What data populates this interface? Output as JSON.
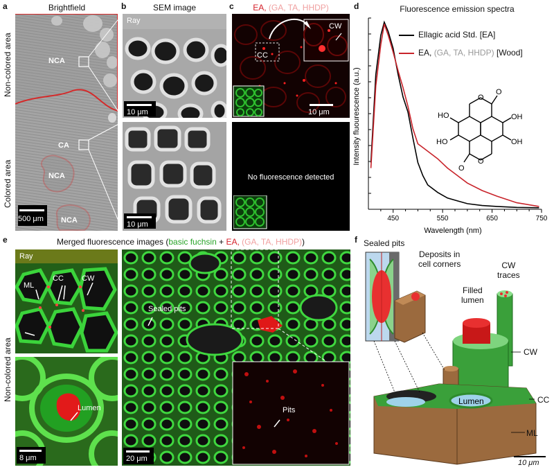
{
  "panel_a": {
    "letter": "a",
    "title": "Brightfield",
    "side_top": "Non-colored area",
    "side_bottom": "Colored area",
    "labels": [
      "NCA",
      "CA",
      "NCA",
      "NCA"
    ],
    "scale": "500 μm"
  },
  "panel_b": {
    "letter": "b",
    "title": "SEM image",
    "ray": "Ray",
    "scale_top": "10 μm",
    "scale_bottom": "10 μm"
  },
  "panel_c": {
    "letter": "c",
    "title_main": "EA,",
    "title_sub": "(GA, TA, HHDP)",
    "cc": "CC",
    "cw": "CW",
    "scale": "10 μm",
    "no_fluor": "No fluorescence detected"
  },
  "panel_d": {
    "letter": "d",
    "title": "Fluorescence emission spectra",
    "legend_black": "Ellagic acid Std. [EA]",
    "legend_red_a": "EA,",
    "legend_red_b": "(GA, TA, HHDP)",
    "legend_red_c": "[Wood]",
    "xlabel": "Wavelength (nm)",
    "ylabel": "Intensity fluourescence (a.u.)",
    "molecule_labels": [
      "O",
      "HO",
      "O",
      "HO",
      "OH",
      "O",
      "OH",
      "O"
    ]
  },
  "panel_e": {
    "letter": "e",
    "title_a": "Merged fluorescence images (",
    "title_b": "basic fuchsin",
    "title_c": " + ",
    "title_d": "EA,",
    "title_e": "(GA, TA, HHDP)",
    "title_f": ")",
    "side": "Non-colored area",
    "ray": "Ray",
    "ml": "ML",
    "cc": "CC",
    "cw": "CW",
    "lumen": "Lumen",
    "sealed_pits": "Sealed pits",
    "pits": "Pits",
    "scale_small": "8 μm",
    "scale_big": "20 μm"
  },
  "panel_f": {
    "letter": "f",
    "sealed_pits": "Sealed pits",
    "deposits_1": "Deposits in",
    "deposits_2": "cell corners",
    "cw_traces_1": "CW",
    "cw_traces_2": "traces",
    "filled_1": "Filled",
    "filled_2": "lumen",
    "cw": "CW",
    "cc": "CC",
    "lumen": "Lumen",
    "ml": "ML",
    "scale": "10 μm"
  },
  "chart_data": {
    "type": "line",
    "title": "Fluorescence emission spectra",
    "xlabel": "Wavelength (nm)",
    "ylabel": "Intensity fluourescence (a.u.)",
    "xlim": [
      400,
      750
    ],
    "xticks": [
      450,
      550,
      650,
      750
    ],
    "series": [
      {
        "name": "Ellagic acid Std. [EA]",
        "color": "#000000",
        "x": [
          405,
          415,
          425,
          432,
          440,
          450,
          460,
          470,
          480,
          490,
          500,
          510,
          520,
          540,
          560,
          580,
          600,
          630,
          660,
          700,
          745
        ],
        "y": [
          0.25,
          0.72,
          0.93,
          1.0,
          0.95,
          0.86,
          0.72,
          0.6,
          0.52,
          0.38,
          0.25,
          0.18,
          0.13,
          0.09,
          0.06,
          0.045,
          0.03,
          0.02,
          0.015,
          0.01,
          0.008
        ]
      },
      {
        "name": "EA, (GA, TA, HHDP) [Wood]",
        "color": "#c8232a",
        "x": [
          405,
          415,
          425,
          432,
          440,
          450,
          460,
          470,
          480,
          490,
          500,
          510,
          520,
          540,
          560,
          580,
          600,
          630,
          660,
          700,
          745
        ],
        "y": [
          0.22,
          0.66,
          0.88,
          0.99,
          0.93,
          0.84,
          0.74,
          0.65,
          0.55,
          0.43,
          0.35,
          0.33,
          0.31,
          0.27,
          0.22,
          0.18,
          0.14,
          0.1,
          0.07,
          0.035,
          0.015
        ]
      }
    ]
  }
}
